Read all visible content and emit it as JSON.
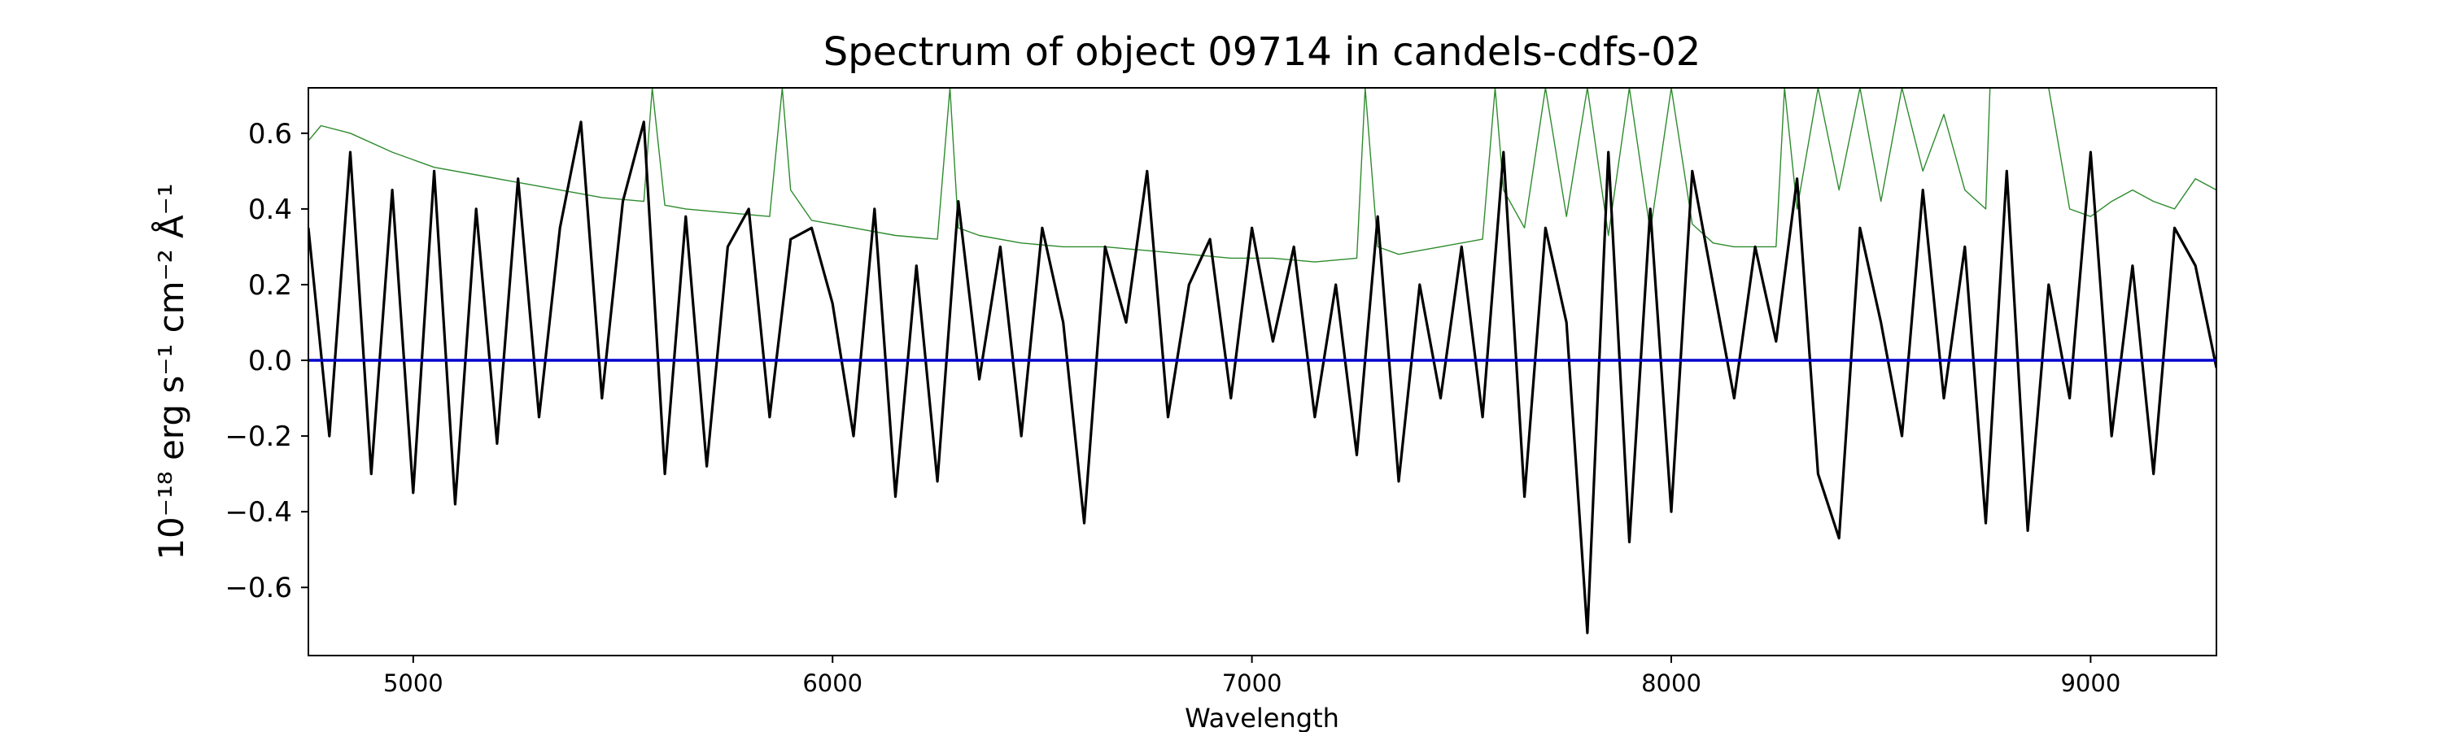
{
  "chart_data": {
    "type": "line",
    "title": "Spectrum of object 09714 in candels-cdfs-02",
    "xlabel": "Wavelength",
    "ylabel": "10⁻¹⁸ erg s⁻¹ cm⁻² Å⁻¹",
    "xlim": [
      4750,
      9300
    ],
    "ylim": [
      -0.78,
      0.72
    ],
    "grid": false,
    "x_ticks": [
      5000,
      6000,
      7000,
      8000,
      9000
    ],
    "x_tick_labels": [
      "5000",
      "6000",
      "7000",
      "8000",
      "9000"
    ],
    "y_ticks": [
      -0.6,
      -0.4,
      -0.2,
      0.0,
      0.2,
      0.4,
      0.6
    ],
    "y_tick_labels": [
      "−0.6",
      "−0.4",
      "−0.2",
      "0.0",
      "0.2",
      "0.4",
      "0.6"
    ],
    "series": [
      {
        "role": "flux",
        "color": "#000000",
        "x": [
          4750,
          4800,
          4850,
          4900,
          4950,
          5000,
          5050,
          5100,
          5150,
          5200,
          5250,
          5300,
          5350,
          5400,
          5450,
          5500,
          5550,
          5600,
          5650,
          5700,
          5750,
          5800,
          5850,
          5900,
          5950,
          6000,
          6050,
          6100,
          6150,
          6200,
          6250,
          6300,
          6350,
          6400,
          6450,
          6500,
          6550,
          6600,
          6650,
          6700,
          6750,
          6800,
          6850,
          6900,
          6950,
          7000,
          7050,
          7100,
          7150,
          7200,
          7250,
          7300,
          7350,
          7400,
          7450,
          7500,
          7550,
          7600,
          7650,
          7700,
          7750,
          7800,
          7850,
          7900,
          7950,
          8000,
          8050,
          8100,
          8150,
          8200,
          8250,
          8300,
          8350,
          8400,
          8450,
          8500,
          8550,
          8600,
          8650,
          8700,
          8750,
          8800,
          8850,
          8900,
          8950,
          9000,
          9050,
          9100,
          9150,
          9200,
          9250,
          9300
        ],
        "y": [
          0.35,
          -0.2,
          0.55,
          -0.3,
          0.45,
          -0.35,
          0.5,
          -0.38,
          0.4,
          -0.22,
          0.48,
          -0.15,
          0.35,
          0.63,
          -0.1,
          0.42,
          0.63,
          -0.3,
          0.38,
          -0.28,
          0.3,
          0.4,
          -0.15,
          0.32,
          0.35,
          0.15,
          -0.2,
          0.4,
          -0.36,
          0.25,
          -0.32,
          0.42,
          -0.05,
          0.3,
          -0.2,
          0.35,
          0.1,
          -0.43,
          0.3,
          0.1,
          0.5,
          -0.15,
          0.2,
          0.32,
          -0.1,
          0.35,
          0.05,
          0.3,
          -0.15,
          0.2,
          -0.25,
          0.38,
          -0.32,
          0.2,
          -0.1,
          0.3,
          -0.15,
          0.55,
          -0.36,
          0.35,
          0.1,
          -0.72,
          0.55,
          -0.48,
          0.4,
          -0.4,
          0.5,
          0.2,
          -0.1,
          0.3,
          0.05,
          0.48,
          -0.3,
          -0.47,
          0.35,
          0.1,
          -0.2,
          0.45,
          -0.1,
          0.3,
          -0.43,
          0.5,
          -0.45,
          0.2,
          -0.1,
          0.55,
          -0.2,
          0.25,
          -0.3,
          0.35,
          0.25,
          -0.02
        ]
      },
      {
        "role": "error",
        "color": "#2e8b2e",
        "x": [
          4750,
          4780,
          4850,
          4950,
          5050,
          5150,
          5250,
          5350,
          5450,
          5550,
          5570,
          5600,
          5650,
          5750,
          5850,
          5880,
          5900,
          5950,
          6050,
          6150,
          6250,
          6280,
          6300,
          6350,
          6450,
          6550,
          6650,
          6750,
          6850,
          6950,
          7050,
          7150,
          7250,
          7270,
          7300,
          7350,
          7450,
          7550,
          7580,
          7600,
          7650,
          7700,
          7750,
          7800,
          7850,
          7900,
          7950,
          8000,
          8050,
          8100,
          8150,
          8200,
          8250,
          8270,
          8300,
          8350,
          8400,
          8450,
          8500,
          8550,
          8600,
          8650,
          8700,
          8750,
          8760,
          8800,
          8850,
          8900,
          8950,
          9000,
          9050,
          9100,
          9150,
          9200,
          9250,
          9300
        ],
        "y": [
          0.58,
          0.62,
          0.6,
          0.55,
          0.51,
          0.49,
          0.47,
          0.45,
          0.43,
          0.42,
          0.72,
          0.41,
          0.4,
          0.39,
          0.38,
          0.72,
          0.45,
          0.37,
          0.35,
          0.33,
          0.32,
          0.72,
          0.35,
          0.33,
          0.31,
          0.3,
          0.3,
          0.29,
          0.28,
          0.27,
          0.27,
          0.26,
          0.27,
          0.72,
          0.3,
          0.28,
          0.3,
          0.32,
          0.72,
          0.45,
          0.35,
          0.72,
          0.38,
          0.72,
          0.33,
          0.72,
          0.34,
          0.72,
          0.36,
          0.31,
          0.3,
          0.3,
          0.3,
          0.72,
          0.4,
          0.72,
          0.45,
          0.72,
          0.42,
          0.72,
          0.5,
          0.65,
          0.45,
          0.4,
          0.72,
          0.72,
          0.72,
          0.72,
          0.4,
          0.38,
          0.42,
          0.45,
          0.42,
          0.4,
          0.48,
          0.45
        ]
      },
      {
        "role": "zero",
        "color": "#0000cc",
        "x": [
          4750,
          9300
        ],
        "y": [
          0.0,
          0.0
        ]
      }
    ]
  }
}
